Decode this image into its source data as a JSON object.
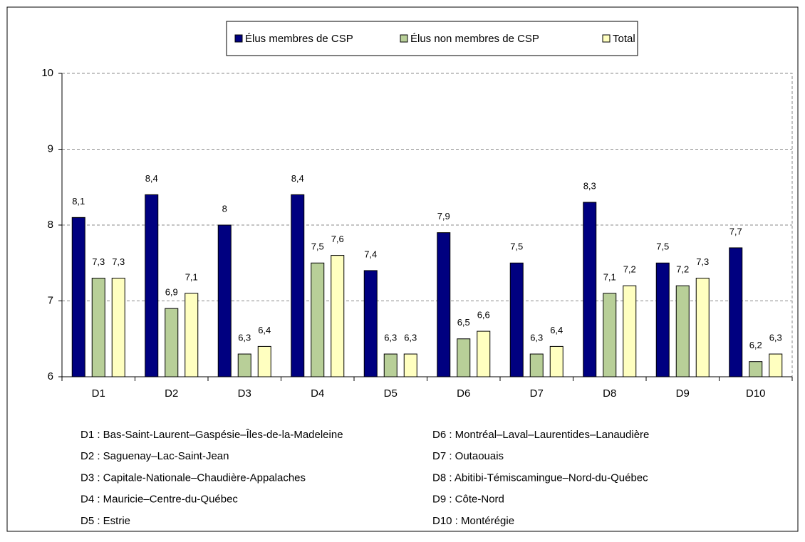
{
  "chart_data": {
    "type": "bar",
    "categories": [
      "D1",
      "D2",
      "D3",
      "D4",
      "D5",
      "D6",
      "D7",
      "D8",
      "D9",
      "D10"
    ],
    "series": [
      {
        "name": "Élus membres de CSP",
        "color": "#000080",
        "values": [
          8.1,
          8.4,
          8,
          8.4,
          7.4,
          7.9,
          7.5,
          8.3,
          7.5,
          7.7
        ],
        "value_labels": [
          "8,1",
          "8,4",
          "8",
          "8,4",
          "7,4",
          "7,9",
          "7,5",
          "8,3",
          "7,5",
          "7,7"
        ]
      },
      {
        "name": "Élus non membres de CSP",
        "color": "#b8cf98",
        "values": [
          7.3,
          6.9,
          6.3,
          7.5,
          6.3,
          6.5,
          6.3,
          7.1,
          7.2,
          6.2
        ],
        "value_labels": [
          "7,3",
          "6,9",
          "6,3",
          "7,5",
          "6,3",
          "6,5",
          "6,3",
          "7,1",
          "7,2",
          "6,2"
        ]
      },
      {
        "name": "Total",
        "color": "#ffffc0",
        "values": [
          7.3,
          7.1,
          6.4,
          7.6,
          6.3,
          6.6,
          6.4,
          7.2,
          7.3,
          6.3
        ],
        "value_labels": [
          "7,3",
          "7,1",
          "6,4",
          "7,6",
          "6,3",
          "6,6",
          "6,4",
          "7,2",
          "7,3",
          "6,3"
        ]
      }
    ],
    "ylim": [
      6,
      10
    ],
    "yticks": [
      6,
      7,
      8,
      9,
      10
    ],
    "grid": true,
    "notes": [
      "D1 : Bas-Saint-Laurent–Gaspésie–Îles-de-la-Madeleine",
      "D2 : Saguenay–Lac-Saint-Jean",
      "D3 : Capitale-Nationale–Chaudière-Appalaches",
      "D4 : Mauricie–Centre-du-Québec",
      "D5 : Estrie",
      "D6 : Montréal–Laval–Laurentides–Lanaudière",
      "D7 : Outaouais",
      "D8 : Abitibi-Témiscamingue–Nord-du-Québec",
      "D9 : Côte-Nord",
      "D10 : Montérégie"
    ]
  }
}
